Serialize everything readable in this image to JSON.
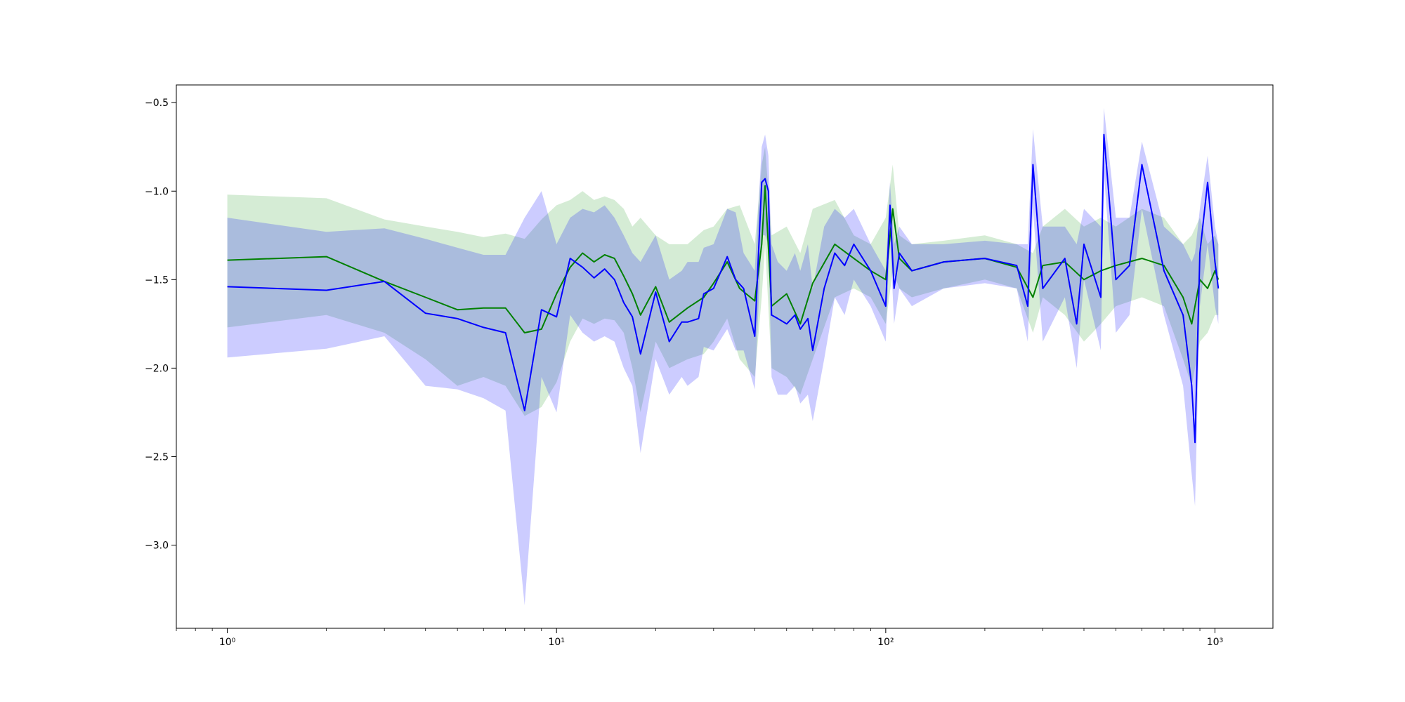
{
  "chart_data": {
    "type": "line",
    "title": "",
    "xlabel": "",
    "ylabel": "",
    "x_scale": "log",
    "xlim": [
      0.7,
      1500
    ],
    "ylim": [
      -3.47,
      -0.4
    ],
    "grid": false,
    "legend": "none",
    "x_ticks": [
      {
        "value": 1,
        "label": "10⁰"
      },
      {
        "value": 10,
        "label": "10¹"
      },
      {
        "value": 100,
        "label": "10²"
      },
      {
        "value": 1000,
        "label": "10³"
      }
    ],
    "y_ticks": [
      {
        "value": -0.5,
        "label": "−0.5"
      },
      {
        "value": -1.0,
        "label": "−1.0"
      },
      {
        "value": -1.5,
        "label": "−1.5"
      },
      {
        "value": -2.0,
        "label": "−2.0"
      },
      {
        "value": -2.5,
        "label": "−2.5"
      },
      {
        "value": -3.0,
        "label": "−3.0"
      }
    ],
    "series": [
      {
        "color": "#008000",
        "band_color": "#2ca02c",
        "x": [
          1,
          2,
          3,
          4,
          5,
          6,
          7,
          8,
          9,
          10,
          11,
          12,
          13,
          14,
          15,
          16,
          17,
          18,
          20,
          22,
          25,
          28,
          30,
          33,
          36,
          40,
          42,
          43,
          45,
          50,
          55,
          60,
          70,
          80,
          90,
          100,
          105,
          110,
          120,
          150,
          200,
          250,
          280,
          300,
          350,
          400,
          450,
          500,
          600,
          700,
          800,
          850,
          900,
          950,
          1000,
          1024
        ],
        "values": [
          -1.39,
          -1.37,
          -1.51,
          -1.6,
          -1.67,
          -1.66,
          -1.66,
          -1.8,
          -1.78,
          -1.58,
          -1.43,
          -1.35,
          -1.4,
          -1.36,
          -1.38,
          -1.48,
          -1.58,
          -1.7,
          -1.54,
          -1.74,
          -1.66,
          -1.6,
          -1.52,
          -1.4,
          -1.55,
          -1.62,
          -1.3,
          -0.97,
          -1.65,
          -1.58,
          -1.75,
          -1.52,
          -1.3,
          -1.38,
          -1.45,
          -1.5,
          -1.1,
          -1.38,
          -1.45,
          -1.4,
          -1.38,
          -1.43,
          -1.6,
          -1.42,
          -1.4,
          -1.5,
          -1.45,
          -1.42,
          -1.38,
          -1.42,
          -1.6,
          -1.75,
          -1.5,
          -1.55,
          -1.45,
          -1.5
        ],
        "upper": [
          -1.02,
          -1.04,
          -1.16,
          -1.2,
          -1.23,
          -1.26,
          -1.24,
          -1.27,
          -1.16,
          -1.08,
          -1.05,
          -1.0,
          -1.05,
          -1.03,
          -1.05,
          -1.1,
          -1.2,
          -1.15,
          -1.25,
          -1.3,
          -1.3,
          -1.22,
          -1.2,
          -1.1,
          -1.08,
          -1.3,
          -0.85,
          -0.75,
          -1.25,
          -1.2,
          -1.35,
          -1.1,
          -1.05,
          -1.25,
          -1.3,
          -1.15,
          -0.85,
          -1.25,
          -1.3,
          -1.28,
          -1.25,
          -1.3,
          -1.35,
          -1.2,
          -1.1,
          -1.2,
          -1.15,
          -1.2,
          -1.1,
          -1.15,
          -1.3,
          -1.25,
          -1.15,
          -1.3,
          -1.25,
          -1.3
        ],
        "lower": [
          -1.77,
          -1.7,
          -1.8,
          -1.95,
          -2.1,
          -2.05,
          -2.1,
          -2.27,
          -2.22,
          -2.08,
          -1.85,
          -1.72,
          -1.75,
          -1.72,
          -1.73,
          -1.8,
          -2.0,
          -2.25,
          -1.85,
          -2.0,
          -1.95,
          -1.92,
          -1.85,
          -1.72,
          -1.95,
          -2.05,
          -1.6,
          -1.3,
          -2.0,
          -2.05,
          -2.15,
          -1.95,
          -1.6,
          -1.55,
          -1.6,
          -1.75,
          -1.45,
          -1.55,
          -1.6,
          -1.55,
          -1.5,
          -1.55,
          -1.8,
          -1.6,
          -1.7,
          -1.85,
          -1.75,
          -1.65,
          -1.6,
          -1.65,
          -1.95,
          -2.1,
          -1.85,
          -1.8,
          -1.7,
          -1.7
        ]
      },
      {
        "color": "#0000ff",
        "band_color": "#0000ff",
        "x": [
          1,
          2,
          3,
          4,
          5,
          6,
          7,
          8,
          9,
          10,
          11,
          12,
          13,
          14,
          15,
          16,
          17,
          18,
          20,
          22,
          24,
          25,
          27,
          28,
          30,
          33,
          35,
          37,
          40,
          42,
          43,
          44,
          45,
          47,
          50,
          53,
          55,
          58,
          60,
          65,
          70,
          75,
          80,
          90,
          100,
          103,
          106,
          110,
          120,
          150,
          200,
          250,
          270,
          280,
          300,
          350,
          380,
          400,
          450,
          460,
          500,
          550,
          600,
          700,
          800,
          850,
          870,
          900,
          950,
          1000,
          1024
        ],
        "values": [
          -1.54,
          -1.56,
          -1.51,
          -1.69,
          -1.72,
          -1.77,
          -1.8,
          -2.24,
          -1.67,
          -1.71,
          -1.38,
          -1.43,
          -1.49,
          -1.44,
          -1.5,
          -1.63,
          -1.71,
          -1.92,
          -1.57,
          -1.85,
          -1.74,
          -1.74,
          -1.72,
          -1.58,
          -1.55,
          -1.37,
          -1.5,
          -1.55,
          -1.82,
          -0.95,
          -0.93,
          -1.0,
          -1.7,
          -1.72,
          -1.75,
          -1.7,
          -1.78,
          -1.72,
          -1.9,
          -1.55,
          -1.35,
          -1.42,
          -1.3,
          -1.45,
          -1.65,
          -1.08,
          -1.55,
          -1.35,
          -1.45,
          -1.4,
          -1.38,
          -1.42,
          -1.65,
          -0.85,
          -1.55,
          -1.38,
          -1.75,
          -1.3,
          -1.6,
          -0.68,
          -1.5,
          -1.42,
          -0.85,
          -1.45,
          -1.7,
          -2.1,
          -2.42,
          -1.35,
          -0.95,
          -1.4,
          -1.55
        ],
        "upper": [
          -1.15,
          -1.23,
          -1.21,
          -1.27,
          -1.32,
          -1.36,
          -1.36,
          -1.15,
          -1.0,
          -1.3,
          -1.15,
          -1.1,
          -1.12,
          -1.08,
          -1.15,
          -1.25,
          -1.35,
          -1.4,
          -1.25,
          -1.5,
          -1.45,
          -1.4,
          -1.4,
          -1.32,
          -1.3,
          -1.1,
          -1.12,
          -1.35,
          -1.45,
          -0.75,
          -0.68,
          -0.8,
          -1.3,
          -1.4,
          -1.45,
          -1.35,
          -1.45,
          -1.3,
          -1.55,
          -1.2,
          -1.1,
          -1.15,
          -1.1,
          -1.3,
          -1.45,
          -0.95,
          -1.3,
          -1.2,
          -1.3,
          -1.3,
          -1.28,
          -1.3,
          -1.3,
          -0.65,
          -1.2,
          -1.2,
          -1.3,
          -1.1,
          -1.2,
          -0.53,
          -1.15,
          -1.15,
          -0.72,
          -1.2,
          -1.3,
          -1.4,
          -1.35,
          -1.1,
          -0.8,
          -1.2,
          -1.3
        ],
        "lower": [
          -1.94,
          -1.89,
          -1.82,
          -2.1,
          -2.12,
          -2.17,
          -2.24,
          -3.34,
          -2.05,
          -2.25,
          -1.7,
          -1.8,
          -1.85,
          -1.82,
          -1.85,
          -2.0,
          -2.1,
          -2.48,
          -1.95,
          -2.15,
          -2.05,
          -2.1,
          -2.05,
          -1.88,
          -1.9,
          -1.78,
          -1.9,
          -1.9,
          -2.12,
          -1.25,
          -1.25,
          -1.3,
          -2.05,
          -2.15,
          -2.15,
          -2.1,
          -2.2,
          -2.15,
          -2.3,
          -1.95,
          -1.6,
          -1.7,
          -1.5,
          -1.65,
          -1.85,
          -1.25,
          -1.75,
          -1.55,
          -1.65,
          -1.55,
          -1.52,
          -1.55,
          -1.85,
          -1.1,
          -1.85,
          -1.6,
          -2.0,
          -1.5,
          -1.9,
          -0.9,
          -1.8,
          -1.7,
          -1.1,
          -1.7,
          -2.1,
          -2.6,
          -2.78,
          -1.65,
          -1.3,
          -1.65,
          -1.75
        ]
      }
    ]
  }
}
